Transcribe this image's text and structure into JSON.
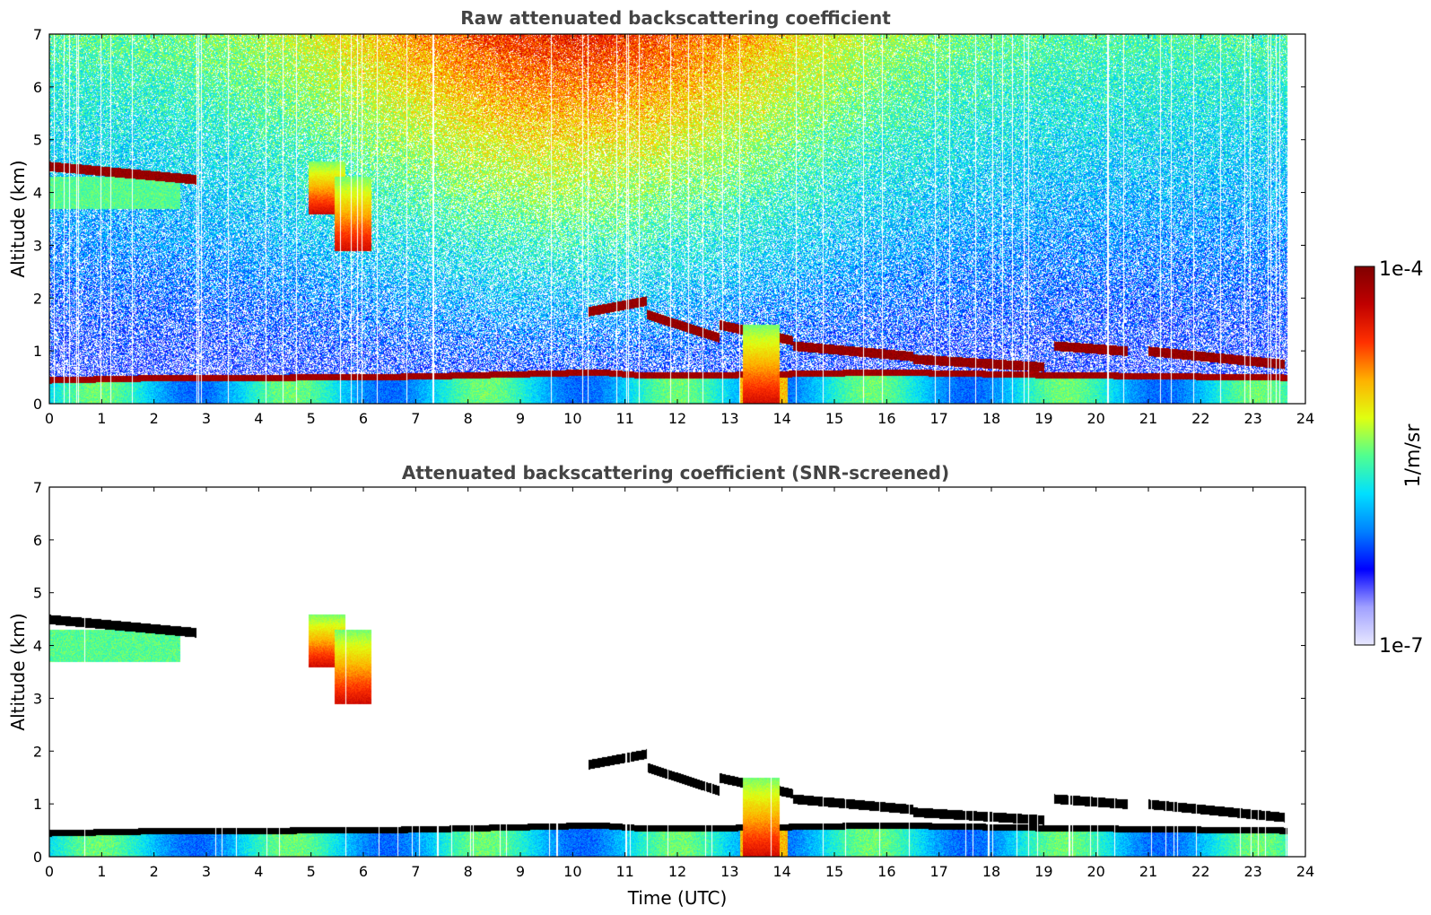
{
  "chart_data": [
    {
      "type": "heatmap",
      "title": "Raw attenuated backscattering coefficient",
      "xlabel": "",
      "ylabel": "Altitude (km)",
      "xlim": [
        0,
        24
      ],
      "ylim": [
        0,
        7
      ],
      "x_ticks": [
        "0",
        "1",
        "2",
        "3",
        "4",
        "5",
        "6",
        "7",
        "8",
        "9",
        "10",
        "11",
        "12",
        "13",
        "14",
        "15",
        "16",
        "17",
        "18",
        "19",
        "20",
        "21",
        "22",
        "23",
        "24"
      ],
      "y_ticks": [
        "0",
        "1",
        "2",
        "3",
        "4",
        "5",
        "6",
        "7"
      ],
      "data_end_time": 23.65,
      "boundary_layer_top": [
        {
          "t": 0,
          "z": 0.45
        },
        {
          "t": 2.5,
          "z": 0.5
        },
        {
          "t": 4.5,
          "z": 0.5
        },
        {
          "t": 7,
          "z": 0.52
        },
        {
          "t": 10.5,
          "z": 0.6
        },
        {
          "t": 11.2,
          "z": 0.55
        },
        {
          "t": 13,
          "z": 0.55
        },
        {
          "t": 16,
          "z": 0.6
        },
        {
          "t": 19,
          "z": 0.55
        },
        {
          "t": 23.65,
          "z": 0.5
        }
      ],
      "cloud_layers": [
        {
          "t_start": 0,
          "t_end": 2.8,
          "z_start": 4.5,
          "z_end": 4.25
        },
        {
          "t_start": 10.3,
          "t_end": 11.4,
          "z_start": 1.75,
          "z_end": 1.95
        },
        {
          "t_start": 11.4,
          "t_end": 12.8,
          "z_start": 1.7,
          "z_end": 1.25
        },
        {
          "t_start": 12.8,
          "t_end": 14.2,
          "z_start": 1.5,
          "z_end": 1.2
        },
        {
          "t_start": 14.2,
          "t_end": 16.5,
          "z_start": 1.1,
          "z_end": 0.9
        },
        {
          "t_start": 16.5,
          "t_end": 19,
          "z_start": 0.85,
          "z_end": 0.7
        },
        {
          "t_start": 19.2,
          "t_end": 20.6,
          "z_start": 1.1,
          "z_end": 1.0
        },
        {
          "t_start": 21,
          "t_end": 23.6,
          "z_start": 1.0,
          "z_end": 0.75
        }
      ],
      "virga_features": [
        {
          "t": 5.3,
          "z_top": 4.6,
          "z_bottom": 3.6
        },
        {
          "t": 5.8,
          "z_top": 4.3,
          "z_bottom": 2.9
        },
        {
          "t": 13.6,
          "z_top": 1.5,
          "z_bottom": 0.0
        }
      ]
    },
    {
      "type": "heatmap",
      "title": "Attenuated backscattering coefficient (SNR-screened)",
      "xlabel": "Time (UTC)",
      "ylabel": "Altitude (km)",
      "xlim": [
        0,
        24
      ],
      "ylim": [
        0,
        7
      ],
      "x_ticks": [
        "0",
        "1",
        "2",
        "3",
        "4",
        "5",
        "6",
        "7",
        "8",
        "9",
        "10",
        "11",
        "12",
        "13",
        "14",
        "15",
        "16",
        "17",
        "18",
        "19",
        "20",
        "21",
        "22",
        "23",
        "24"
      ],
      "y_ticks": [
        "0",
        "1",
        "2",
        "3",
        "4",
        "5",
        "6",
        "7"
      ],
      "note": "same features as raw panel with noise removed; saturated layers shown in black"
    }
  ],
  "colorbar": {
    "label": "1/m/sr",
    "max_label": "1e-4",
    "min_label": "1e-7",
    "colormap": [
      "#e8e8ff",
      "#a0a0ff",
      "#0000ff",
      "#0080ff",
      "#00e0ff",
      "#50ff90",
      "#e0ff10",
      "#ffb000",
      "#ff3000",
      "#c00000",
      "#800000"
    ]
  }
}
